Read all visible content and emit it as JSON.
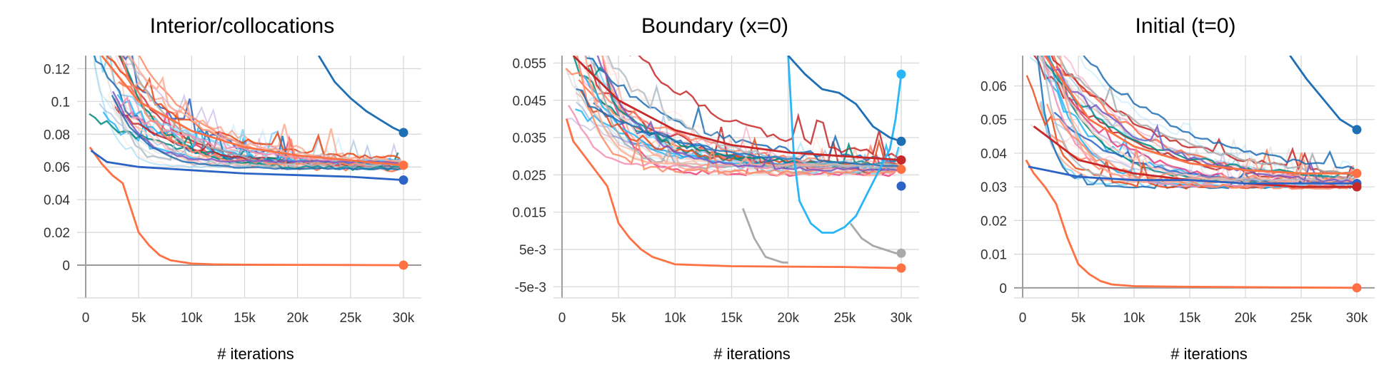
{
  "chart_data": [
    {
      "type": "line",
      "title": "Interior/collocations",
      "xlabel": "# iterations",
      "ylabel": "",
      "xlim": [
        0,
        30000
      ],
      "ylim": [
        -0.02,
        0.128
      ],
      "xticks": [
        0,
        5000,
        10000,
        15000,
        20000,
        25000,
        30000
      ],
      "xtick_labels": [
        "0",
        "5k",
        "10k",
        "15k",
        "20k",
        "25k",
        "30k"
      ],
      "yticks": [
        0,
        0.02,
        0.04,
        0.06,
        0.08,
        0.1,
        0.12
      ],
      "ytick_labels": [
        "0",
        "0.02",
        "0.04",
        "0.06",
        "0.08",
        "0.1",
        "0.12"
      ],
      "grid": true,
      "highlighted_series": [
        {
          "color": "#1f6fb5",
          "x": [
            22000,
            23500,
            25000,
            26500,
            28000,
            29000,
            30000
          ],
          "y": [
            0.128,
            0.112,
            0.102,
            0.094,
            0.088,
            0.084,
            0.081
          ]
        },
        {
          "color": "#ff7043",
          "x": [
            400,
            1500,
            2500,
            3500,
            4000,
            5000,
            6000,
            7000,
            8000,
            10000,
            12000,
            15000,
            20000,
            25000,
            30000
          ],
          "y": [
            0.072,
            0.062,
            0.055,
            0.05,
            0.04,
            0.02,
            0.012,
            0.006,
            0.003,
            0.001,
            0.0005,
            0.0003,
            0.0002,
            0.0001,
            0.0
          ]
        },
        {
          "color": "#ff7043",
          "x": [
            1500,
            5000,
            10000,
            15000,
            20000,
            25000,
            30000
          ],
          "y": [
            0.128,
            0.1,
            0.082,
            0.072,
            0.067,
            0.064,
            0.061
          ]
        },
        {
          "color": "#2b64c4",
          "x": [
            500,
            2000,
            5000,
            10000,
            15000,
            20000,
            25000,
            30000
          ],
          "y": [
            0.07,
            0.063,
            0.06,
            0.058,
            0.056,
            0.055,
            0.054,
            0.052
          ]
        }
      ],
      "end_markers": [
        {
          "y": 0.081,
          "color": "#1f6fb5"
        },
        {
          "y": 0.061,
          "color": "#ff7043"
        },
        {
          "y": 0.052,
          "color": "#2b64c4"
        },
        {
          "y": 0.0,
          "color": "#ff7043"
        }
      ]
    },
    {
      "type": "line",
      "title": "Boundary (x=0)",
      "xlabel": "# iterations",
      "ylabel": "",
      "xlim": [
        0,
        30000
      ],
      "ylim": [
        -0.008,
        0.057
      ],
      "xticks": [
        0,
        5000,
        10000,
        15000,
        20000,
        25000,
        30000
      ],
      "xtick_labels": [
        "0",
        "5k",
        "10k",
        "15k",
        "20k",
        "25k",
        "30k"
      ],
      "yticks": [
        -0.005,
        0.005,
        0.015,
        0.025,
        0.035,
        0.045,
        0.055
      ],
      "ytick_labels": [
        "-5e-3",
        "5e-3",
        "0.015",
        "0.025",
        "0.035",
        "0.045",
        "0.055"
      ],
      "grid": true,
      "highlighted_series": [
        {
          "color": "#29b6f6",
          "x": [
            20000,
            20500,
            21000,
            22000,
            23000,
            24000,
            25000,
            26000,
            27000,
            28000,
            29000,
            29500,
            30000
          ],
          "y": [
            0.057,
            0.03,
            0.018,
            0.012,
            0.0095,
            0.0095,
            0.011,
            0.014,
            0.02,
            0.026,
            0.032,
            0.04,
            0.052
          ]
        },
        {
          "color": "#aaaaaa",
          "x": [
            16000,
            17000,
            18000,
            19000,
            19500,
            20000
          ],
          "y": [
            0.016,
            0.008,
            0.003,
            0.002,
            0.0015,
            0.0015
          ]
        },
        {
          "color": "#aaaaaa",
          "x": [
            25500,
            26500,
            27500,
            28500,
            29500,
            30000
          ],
          "y": [
            0.012,
            0.008,
            0.006,
            0.005,
            0.004,
            0.004
          ]
        },
        {
          "color": "#1f6fb5",
          "x": [
            20000,
            21500,
            23000,
            24500,
            26000,
            27500,
            29000,
            30000
          ],
          "y": [
            0.057,
            0.052,
            0.048,
            0.047,
            0.044,
            0.038,
            0.035,
            0.034
          ]
        },
        {
          "color": "#ff7043",
          "x": [
            400,
            1000,
            2000,
            3000,
            4000,
            5000,
            6000,
            7000,
            8000,
            10000,
            15000,
            20000,
            25000,
            30000
          ],
          "y": [
            0.04,
            0.034,
            0.03,
            0.026,
            0.022,
            0.012,
            0.008,
            0.005,
            0.003,
            0.001,
            0.0005,
            0.0004,
            0.0003,
            0.0
          ]
        },
        {
          "color": "#c62828",
          "x": [
            1000,
            5000,
            10000,
            15000,
            20000,
            25000,
            30000
          ],
          "y": [
            0.057,
            0.045,
            0.037,
            0.033,
            0.031,
            0.03,
            0.029
          ]
        }
      ],
      "end_markers": [
        {
          "y": 0.052,
          "color": "#29b6f6"
        },
        {
          "y": 0.034,
          "color": "#1f6fb5"
        },
        {
          "y": 0.029,
          "color": "#c62828"
        },
        {
          "y": 0.0265,
          "color": "#ff7043"
        },
        {
          "y": 0.022,
          "color": "#2b64c4"
        },
        {
          "y": 0.004,
          "color": "#aaaaaa"
        },
        {
          "y": 0.0,
          "color": "#ff7043"
        }
      ]
    },
    {
      "type": "line",
      "title": "Initial (t=0)",
      "xlabel": "# iterations",
      "ylabel": "",
      "xlim": [
        0,
        30000
      ],
      "ylim": [
        -0.003,
        0.069
      ],
      "xticks": [
        0,
        5000,
        10000,
        15000,
        20000,
        25000,
        30000
      ],
      "xtick_labels": [
        "0",
        "5k",
        "10k",
        "15k",
        "20k",
        "25k",
        "30k"
      ],
      "yticks": [
        0,
        0.01,
        0.02,
        0.03,
        0.04,
        0.05,
        0.06
      ],
      "ytick_labels": [
        "0",
        "0.01",
        "0.02",
        "0.03",
        "0.04",
        "0.05",
        "0.06"
      ],
      "grid": true,
      "highlighted_series": [
        {
          "color": "#1f6fb5",
          "x": [
            24000,
            25500,
            27000,
            28500,
            29500,
            30000
          ],
          "y": [
            0.069,
            0.062,
            0.056,
            0.05,
            0.048,
            0.047
          ]
        },
        {
          "color": "#ff7043",
          "x": [
            300,
            1000,
            2000,
            3000,
            4000,
            5000,
            6000,
            7000,
            8000,
            10000,
            15000,
            20000,
            25000,
            30000
          ],
          "y": [
            0.038,
            0.034,
            0.03,
            0.025,
            0.015,
            0.007,
            0.004,
            0.002,
            0.001,
            0.0005,
            0.0003,
            0.0002,
            0.0001,
            0.0
          ]
        },
        {
          "color": "#ff7043",
          "x": [
            2000,
            6000,
            10000,
            15000,
            20000,
            25000,
            30000
          ],
          "y": [
            0.069,
            0.05,
            0.042,
            0.037,
            0.035,
            0.034,
            0.034
          ]
        },
        {
          "color": "#c62828",
          "x": [
            1000,
            5000,
            10000,
            15000,
            20000,
            25000,
            30000
          ],
          "y": [
            0.048,
            0.038,
            0.034,
            0.032,
            0.031,
            0.03,
            0.03
          ]
        },
        {
          "color": "#2b64c4",
          "x": [
            500,
            5000,
            10000,
            15000,
            20000,
            25000,
            30000
          ],
          "y": [
            0.036,
            0.033,
            0.032,
            0.032,
            0.031,
            0.031,
            0.031
          ]
        }
      ],
      "end_markers": [
        {
          "y": 0.047,
          "color": "#1f6fb5"
        },
        {
          "y": 0.034,
          "color": "#ff7043"
        },
        {
          "y": 0.031,
          "color": "#2b64c4"
        },
        {
          "y": 0.03,
          "color": "#c62828"
        },
        {
          "y": 0.0,
          "color": "#ff7043"
        }
      ]
    }
  ],
  "palette": [
    "#1f6fb5",
    "#29b6f6",
    "#ff7043",
    "#e64a19",
    "#c62828",
    "#ec407a",
    "#aaaaaa",
    "#00897b",
    "#2b64c4",
    "#f48fb1",
    "#ffab91",
    "#81d4fa",
    "#b0bec5",
    "#ff8a65",
    "#ffccbc",
    "#7e57c2"
  ]
}
